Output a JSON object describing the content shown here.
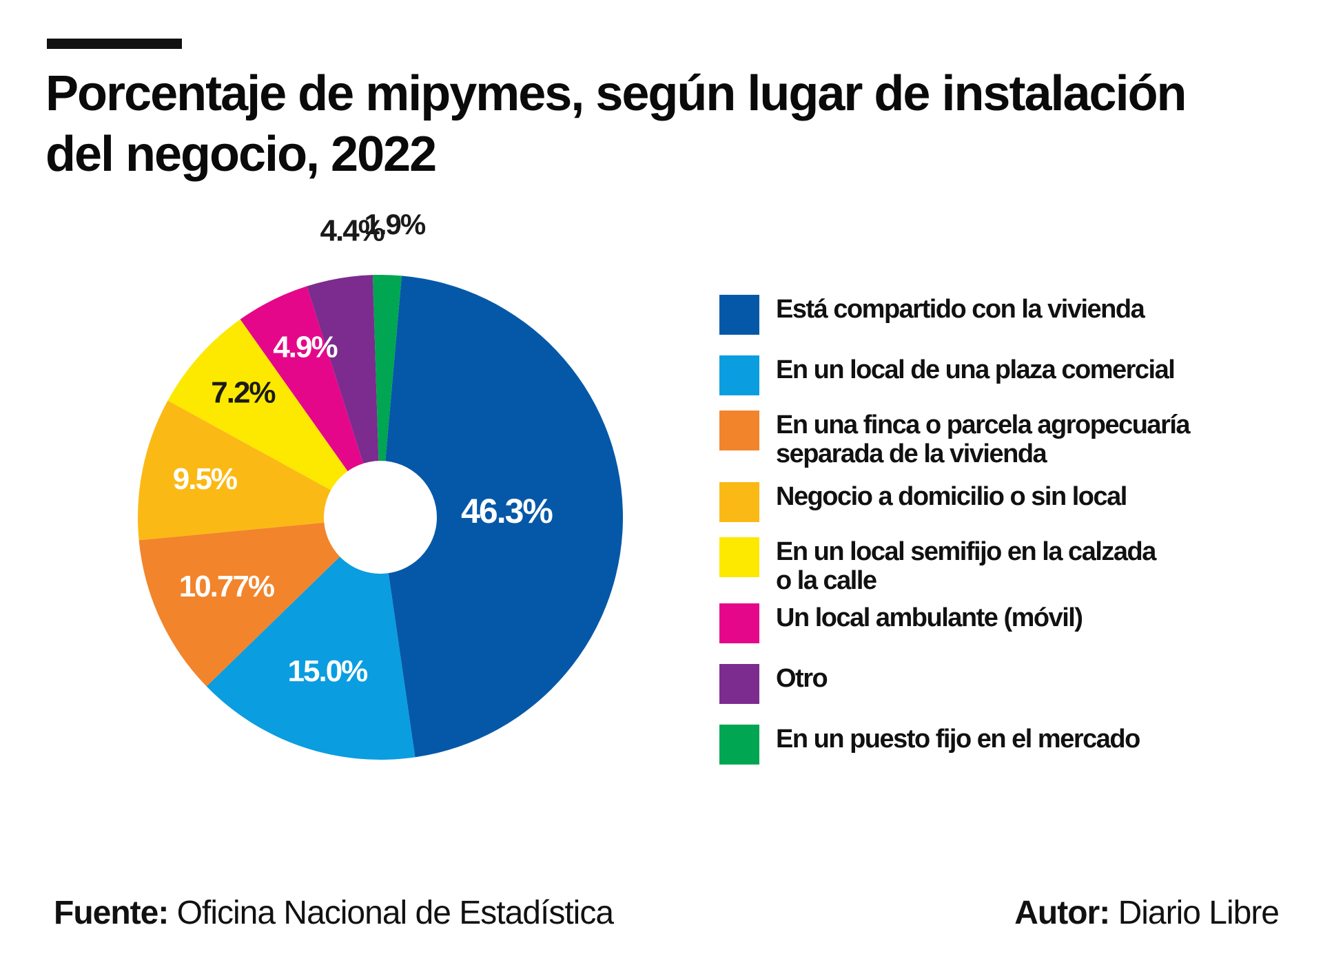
{
  "title": {
    "line1": "Porcentaje de mipymes, según lugar de instalación",
    "line2": "del negocio, 2022"
  },
  "chart_data": {
    "type": "pie",
    "title": "Porcentaje de mipymes, según lugar de instalación del negocio, 2022",
    "categories": [
      "Está compartido con la vivienda",
      "En un local de una plaza comercial",
      "En una finca o parcela agropecuaría separada de la vivienda",
      "Negocio a domicilio o sin local",
      "En un local semifijo en la calzada o la calle",
      "Un local ambulante (móvil)",
      "Otro",
      "En un puesto fijo en el mercado"
    ],
    "values": [
      46.3,
      15.0,
      10.77,
      9.5,
      7.2,
      4.9,
      4.4,
      1.9
    ],
    "value_labels": [
      "46.3%",
      "15.0%",
      "10.77%",
      "9.5%",
      "7.2%",
      "4.9%",
      "4.4%",
      "1.9%"
    ],
    "colors": [
      "#0558a8",
      "#0a9de0",
      "#f2842b",
      "#fbb916",
      "#fde800",
      "#e5078a",
      "#7b2c8e",
      "#00a651"
    ],
    "label_colors": [
      "#ffffff",
      "#ffffff",
      "#ffffff",
      "#ffffff",
      "#1a1a1a",
      "#ffffff",
      "#1a1a1a",
      "#1a1a1a"
    ],
    "donut_hole": true,
    "legend_position": "right"
  },
  "legend": [
    {
      "lines": [
        "Está compartido con la vivienda"
      ],
      "color": "#0558a8"
    },
    {
      "lines": [
        "En un local de una plaza comercial"
      ],
      "color": "#0a9de0"
    },
    {
      "lines": [
        "En una finca o parcela agropecuaría",
        "separada de la vivienda"
      ],
      "color": "#f2842b"
    },
    {
      "lines": [
        "Negocio a domicilio o sin local"
      ],
      "color": "#fbb916"
    },
    {
      "lines": [
        "En un local semifijo en la calzada",
        "o la calle"
      ],
      "color": "#fde800"
    },
    {
      "lines": [
        "Un local ambulante (móvil)"
      ],
      "color": "#e5078a"
    },
    {
      "lines": [
        "Otro"
      ],
      "color": "#7b2c8e"
    },
    {
      "lines": [
        "En un puesto fijo en el mercado"
      ],
      "color": "#00a651"
    }
  ],
  "footer": {
    "source_label": "Fuente:",
    "source_value": "Oficina Nacional de Estadística",
    "author_label": "Autor:",
    "author_value": "Diario Libre"
  }
}
